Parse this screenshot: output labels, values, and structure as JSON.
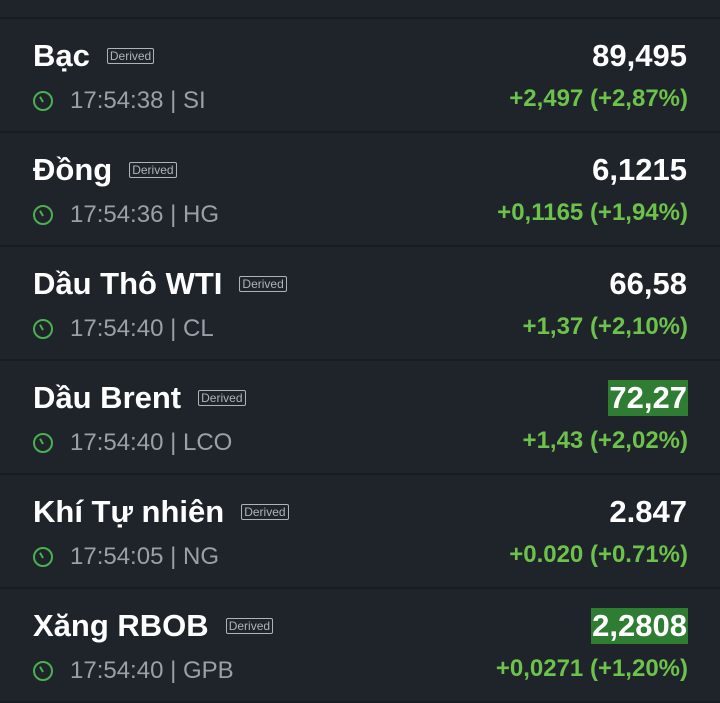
{
  "badge_label": "Derived",
  "colors": {
    "positive": "#6cc24a",
    "highlight": "#2e7d32",
    "clock": "#4caf50"
  },
  "items": [
    {
      "name": "Bạc",
      "time": "17:54:38 | SI",
      "price": "89,495",
      "change": "+2,497 (+2,87%)",
      "highlighted": false
    },
    {
      "name": "Đồng",
      "time": "17:54:36 | HG",
      "price": "6,1215",
      "change": "+0,1165 (+1,94%)",
      "highlighted": false
    },
    {
      "name": "Dầu Thô WTI",
      "time": "17:54:40 | CL",
      "price": "66,58",
      "change": "+1,37 (+2,10%)",
      "highlighted": false
    },
    {
      "name": "Dầu Brent",
      "time": "17:54:40 | LCO",
      "price": "72,27",
      "change": "+1,43 (+2,02%)",
      "highlighted": true
    },
    {
      "name": "Khí Tự nhiên",
      "time": "17:54:05 | NG",
      "price": "2.847",
      "change": "+0.020 (+0.71%)",
      "highlighted": false
    },
    {
      "name": "Xăng RBOB",
      "time": "17:54:40 | GPB",
      "price": "2,2808",
      "change": "+0,0271 (+1,20%)",
      "highlighted": true
    }
  ]
}
